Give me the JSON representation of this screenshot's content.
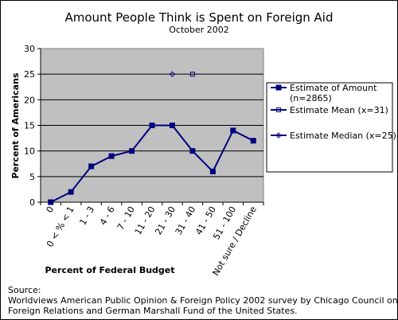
{
  "chart_data": {
    "type": "line",
    "title": "Amount People Think is Spent on Foreign Aid",
    "subtitle": "October 2002",
    "xlabel": "Percent of Federal Budget",
    "ylabel": "Percent of Americans",
    "ylim": [
      0,
      30
    ],
    "yticks": [
      0,
      5,
      10,
      15,
      20,
      25,
      30
    ],
    "grid": "horizontal",
    "legend_position": "right",
    "categories": [
      "0",
      "0 < % < 1",
      "1 - 3",
      "4 - 6",
      "7 - 10",
      "11 - 20",
      "21 - 30",
      "31 - 40",
      "41 - 50",
      "51 - 100",
      "Not sure / Decline"
    ],
    "series": [
      {
        "name": "Estimate of Amount (n=2865)",
        "name_lines": [
          "Estimate of Amount",
          "(n=2865)"
        ],
        "color": "#000080",
        "marker": "filled-square",
        "points": [
          {
            "x": 0,
            "y": 0
          },
          {
            "x": 1,
            "y": 2
          },
          {
            "x": 2,
            "y": 7
          },
          {
            "x": 3,
            "y": 9
          },
          {
            "x": 4,
            "y": 10
          },
          {
            "x": 5,
            "y": 15
          },
          {
            "x": 6,
            "y": 15
          },
          {
            "x": 7,
            "y": 10
          },
          {
            "x": 8,
            "y": 6
          },
          {
            "x": 9,
            "y": 14
          },
          {
            "x": 10,
            "y": 12
          }
        ]
      },
      {
        "name": "Estimate Mean (x=31)",
        "name_lines": [
          "Estimate Mean (x=31)"
        ],
        "color": "#000080",
        "marker": "open-square",
        "points": [
          {
            "x": 7,
            "y": 25
          }
        ]
      },
      {
        "name": "Estimate Median (x=25)",
        "name_lines": [
          "Estimate Median (x=25)"
        ],
        "color": "#000080",
        "marker": "open-diamond",
        "points": [
          {
            "x": 6,
            "y": 25
          }
        ]
      }
    ]
  },
  "source": {
    "label": "Source:",
    "line1": "Worldviews  American Public Opinion & Foreign Policy 2002 survey by Chicago Council on",
    "line2": "Foreign Relations and German Marshall Fund of the United States."
  }
}
